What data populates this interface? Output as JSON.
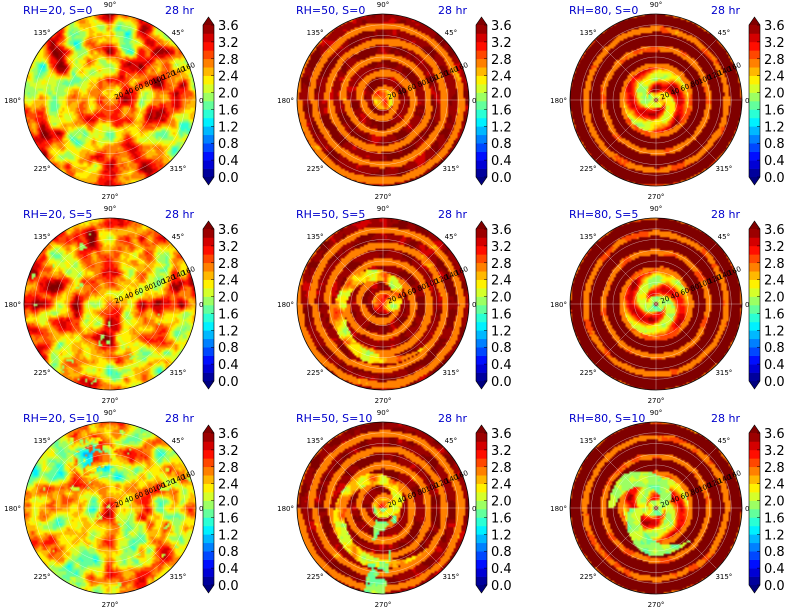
{
  "chart_data": {
    "type": "heatmap",
    "projection": "polar",
    "layout": {
      "rows": 3,
      "cols": 3
    },
    "time_label": "28 hr",
    "angle_ticks": [
      "90°",
      "45°",
      "0°",
      "315°",
      "270°",
      "225°",
      "180°",
      "135°"
    ],
    "radial_ticks": [
      20,
      40,
      60,
      80,
      100,
      120,
      140,
      160
    ],
    "colorbar": {
      "ticks": [
        "3.6",
        "3.2",
        "2.8",
        "2.4",
        "2.0",
        "1.6",
        "1.2",
        "0.8",
        "0.4",
        "0.0"
      ],
      "min": 0.0,
      "max": 3.6,
      "extend": "both",
      "colormap": "jet"
    },
    "panels": [
      {
        "title": "RH=20, S=0",
        "rh": 20,
        "s": 0
      },
      {
        "title": "RH=50, S=0",
        "rh": 50,
        "s": 0
      },
      {
        "title": "RH=80, S=0",
        "rh": 80,
        "s": 0
      },
      {
        "title": "RH=20, S=5",
        "rh": 20,
        "s": 5
      },
      {
        "title": "RH=50, S=5",
        "rh": 50,
        "s": 5
      },
      {
        "title": "RH=80, S=5",
        "rh": 80,
        "s": 5
      },
      {
        "title": "RH=20, S=10",
        "rh": 20,
        "s": 10
      },
      {
        "title": "RH=50, S=10",
        "rh": 50,
        "s": 10
      },
      {
        "title": "RH=80, S=10",
        "rh": 80,
        "s": 10
      }
    ]
  }
}
